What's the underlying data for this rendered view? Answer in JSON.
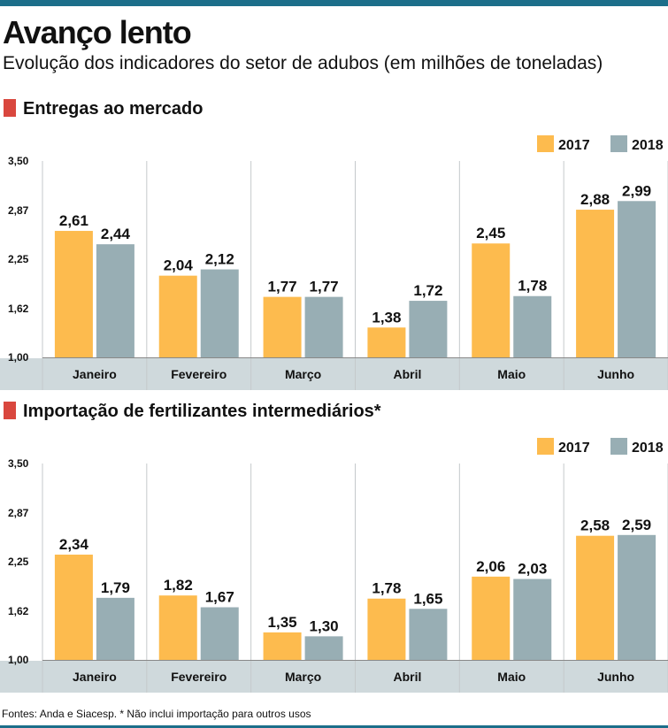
{
  "title": "Avanço lento",
  "subtitle": "Evolução dos indicadores do setor de adubos  (em milhões de toneladas)",
  "footer": {
    "source": "Fontes: Anda e Siacesp. * Não inclui importação para outros usos"
  },
  "colors": {
    "s2017": "#fdbb4e",
    "s2018": "#98aeb4",
    "accent": "#d9473e",
    "band": "#cfd9dc",
    "rule": "#1c6e8a"
  },
  "sections": [
    {
      "heading": "Entregas ao mercado"
    },
    {
      "heading": "Importação de fertilizantes intermediários*"
    }
  ],
  "chart_data": [
    {
      "type": "bar",
      "title": "Entregas ao mercado",
      "categories": [
        "Janeiro",
        "Fevereiro",
        "Março",
        "Abril",
        "Maio",
        "Junho"
      ],
      "series": [
        {
          "name": "2017",
          "values": [
            2.61,
            2.04,
            1.77,
            1.38,
            2.45,
            2.88
          ],
          "labels": [
            "2,61",
            "2,04",
            "1,77",
            "1,38",
            "2,45",
            "2,88"
          ]
        },
        {
          "name": "2018",
          "values": [
            2.44,
            2.12,
            1.77,
            1.72,
            1.78,
            2.99
          ],
          "labels": [
            "2,44",
            "2,12",
            "1,77",
            "1,72",
            "1,78",
            "2,99"
          ]
        }
      ],
      "ylim": [
        1.0,
        3.5
      ],
      "yticks": [
        1.0,
        1.62,
        2.25,
        2.87,
        3.5
      ],
      "ytick_labels": [
        "1,00",
        "1,62",
        "2,25",
        "2,87",
        "3,50"
      ],
      "legend": "top-right",
      "grid": "vertical"
    },
    {
      "type": "bar",
      "title": "Importação de fertilizantes intermediários*",
      "categories": [
        "Janeiro",
        "Fevereiro",
        "Março",
        "Abril",
        "Maio",
        "Junho"
      ],
      "series": [
        {
          "name": "2017",
          "values": [
            2.34,
            1.82,
            1.35,
            1.78,
            2.06,
            2.58
          ],
          "labels": [
            "2,34",
            "1,82",
            "1,35",
            "1,78",
            "2,06",
            "2,58"
          ]
        },
        {
          "name": "2018",
          "values": [
            1.79,
            1.67,
            1.3,
            1.65,
            2.03,
            2.59
          ],
          "labels": [
            "1,79",
            "1,67",
            "1,30",
            "1,65",
            "2,03",
            "2,59"
          ]
        }
      ],
      "ylim": [
        1.0,
        3.5
      ],
      "yticks": [
        1.0,
        1.62,
        2.25,
        2.87,
        3.5
      ],
      "ytick_labels": [
        "1,00",
        "1,62",
        "2,25",
        "2,87",
        "3,50"
      ],
      "legend": "top-right",
      "grid": "vertical"
    }
  ]
}
